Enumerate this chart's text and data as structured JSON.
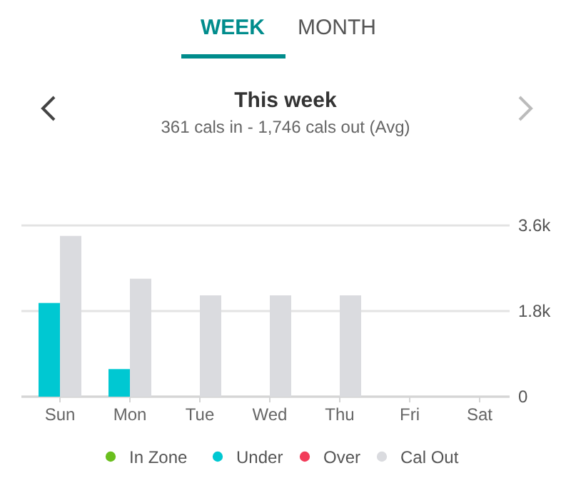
{
  "chart_data": {
    "type": "bar",
    "title": "This week",
    "subtitle": "361 cals in - 1,746 cals out (Avg)",
    "annotations": [
      "WEEK",
      "MONTH"
    ],
    "categories": [
      "Sun",
      "Mon",
      "Tue",
      "Wed",
      "Thu",
      "Fri",
      "Sat"
    ],
    "series": [
      {
        "name": "In Zone",
        "color": "#6abf1e",
        "values": [
          null,
          null,
          null,
          null,
          null,
          null,
          null
        ]
      },
      {
        "name": "Under",
        "color": "#00c8d2",
        "values": [
          1970,
          580,
          null,
          null,
          null,
          null,
          null
        ]
      },
      {
        "name": "Over",
        "color": "#f23c5a",
        "values": [
          null,
          null,
          null,
          null,
          null,
          null,
          null
        ]
      },
      {
        "name": "Cal Out",
        "color": "#dadbdf",
        "values": [
          3380,
          2480,
          2130,
          2130,
          2130,
          null,
          null
        ]
      }
    ],
    "ylim": [
      0,
      3600
    ],
    "yticks": [
      {
        "value": 0,
        "label": "0"
      },
      {
        "value": 1800,
        "label": "1.8k"
      },
      {
        "value": 3600,
        "label": "3.6k"
      }
    ],
    "grid": "y",
    "legend": "bottom",
    "marker": "circle"
  }
}
